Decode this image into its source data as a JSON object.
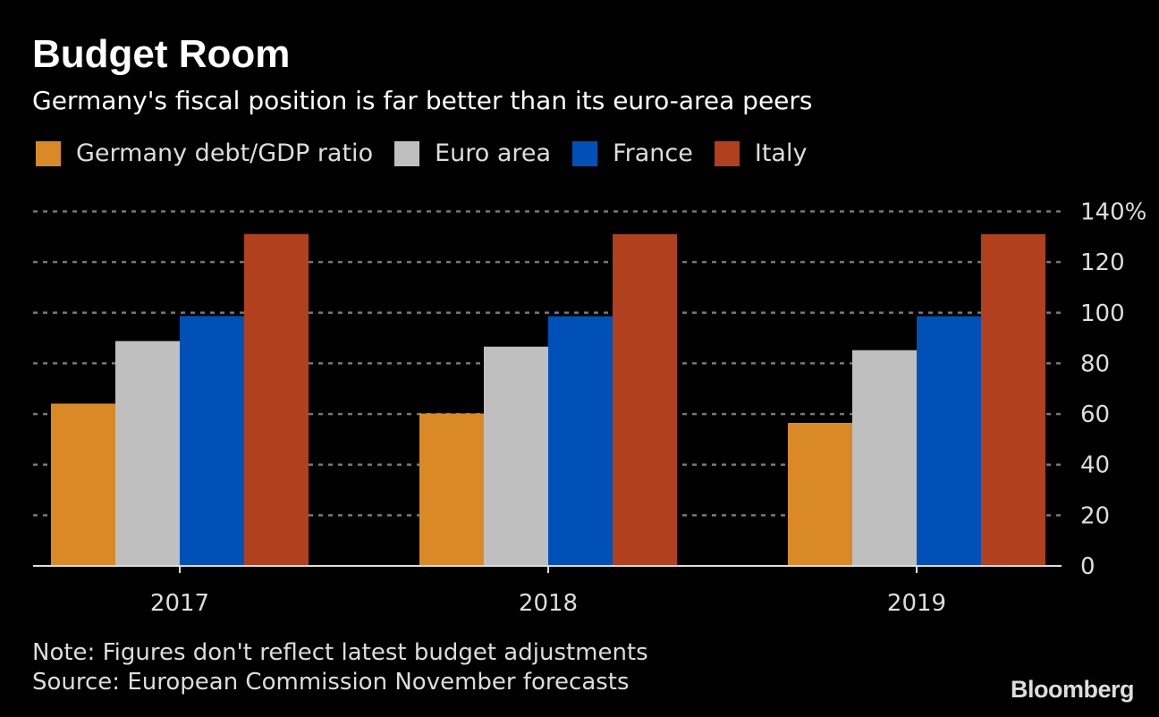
{
  "chart_data": {
    "type": "bar",
    "title": "Budget Room",
    "subtitle": "Germany's fiscal position is far better than its euro-area peers",
    "categories": [
      "2017",
      "2018",
      "2019"
    ],
    "series": [
      {
        "name": "Germany debt/GDP ratio",
        "color": "#d98a26",
        "values": [
          64.1,
          60.2,
          56.5
        ]
      },
      {
        "name": "Euro area",
        "color": "#bfbfbf",
        "values": [
          88.8,
          86.6,
          85.2
        ]
      },
      {
        "name": "France",
        "color": "#0050b8",
        "values": [
          98.7,
          98.6,
          98.6
        ]
      },
      {
        "name": "Italy",
        "color": "#b0401e",
        "values": [
          131.1,
          131.0,
          131.0
        ]
      }
    ],
    "ylim": [
      0,
      140
    ],
    "yticks": [
      "0",
      "20",
      "40",
      "60",
      "80",
      "100",
      "120",
      "140%"
    ],
    "yaxis_side": "right",
    "grid": true,
    "legend": "top",
    "xlabel": "",
    "ylabel": ""
  },
  "note": "Note: Figures don't reflect latest budget adjustments",
  "source": "Source: European Commission November forecasts",
  "logo": "Bloomberg"
}
